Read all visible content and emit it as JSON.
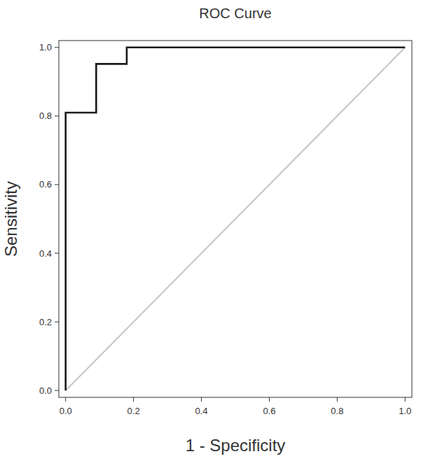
{
  "chart_data": {
    "type": "line",
    "title": "ROC Curve",
    "x_label": "1 - Specificity",
    "y_label": "Sensitivity",
    "xlim": [
      -0.02,
      1.02
    ],
    "ylim": [
      -0.02,
      1.02
    ],
    "xticks": [
      {
        "value": 0,
        "label": "0.0"
      },
      {
        "value": 0.2,
        "label": "0.2"
      },
      {
        "value": 0.4,
        "label": "0.4"
      },
      {
        "value": 0.6,
        "label": "0.6"
      },
      {
        "value": 0.8,
        "label": "0.8"
      },
      {
        "value": 1,
        "label": "1.0"
      }
    ],
    "yticks": [
      {
        "value": 0,
        "label": "0.0"
      },
      {
        "value": 0.2,
        "label": "0.2"
      },
      {
        "value": 0.4,
        "label": "0.4"
      },
      {
        "value": 0.6,
        "label": "0.6"
      },
      {
        "value": 0.8,
        "label": "0.8"
      },
      {
        "value": 1,
        "label": "1.0"
      }
    ],
    "grid": false,
    "series": [
      {
        "color": "#1a1a1a",
        "line_style": "solid",
        "x": [
          0,
          0,
          0.09,
          0.09,
          0.18,
          0.18,
          1
        ],
        "values": [
          0,
          0.81,
          0.81,
          0.952,
          0.952,
          1,
          1
        ]
      },
      {
        "color": "#c8c8c8",
        "line_style": "solid",
        "x": [
          0,
          1
        ],
        "values": [
          0,
          1
        ]
      }
    ]
  }
}
